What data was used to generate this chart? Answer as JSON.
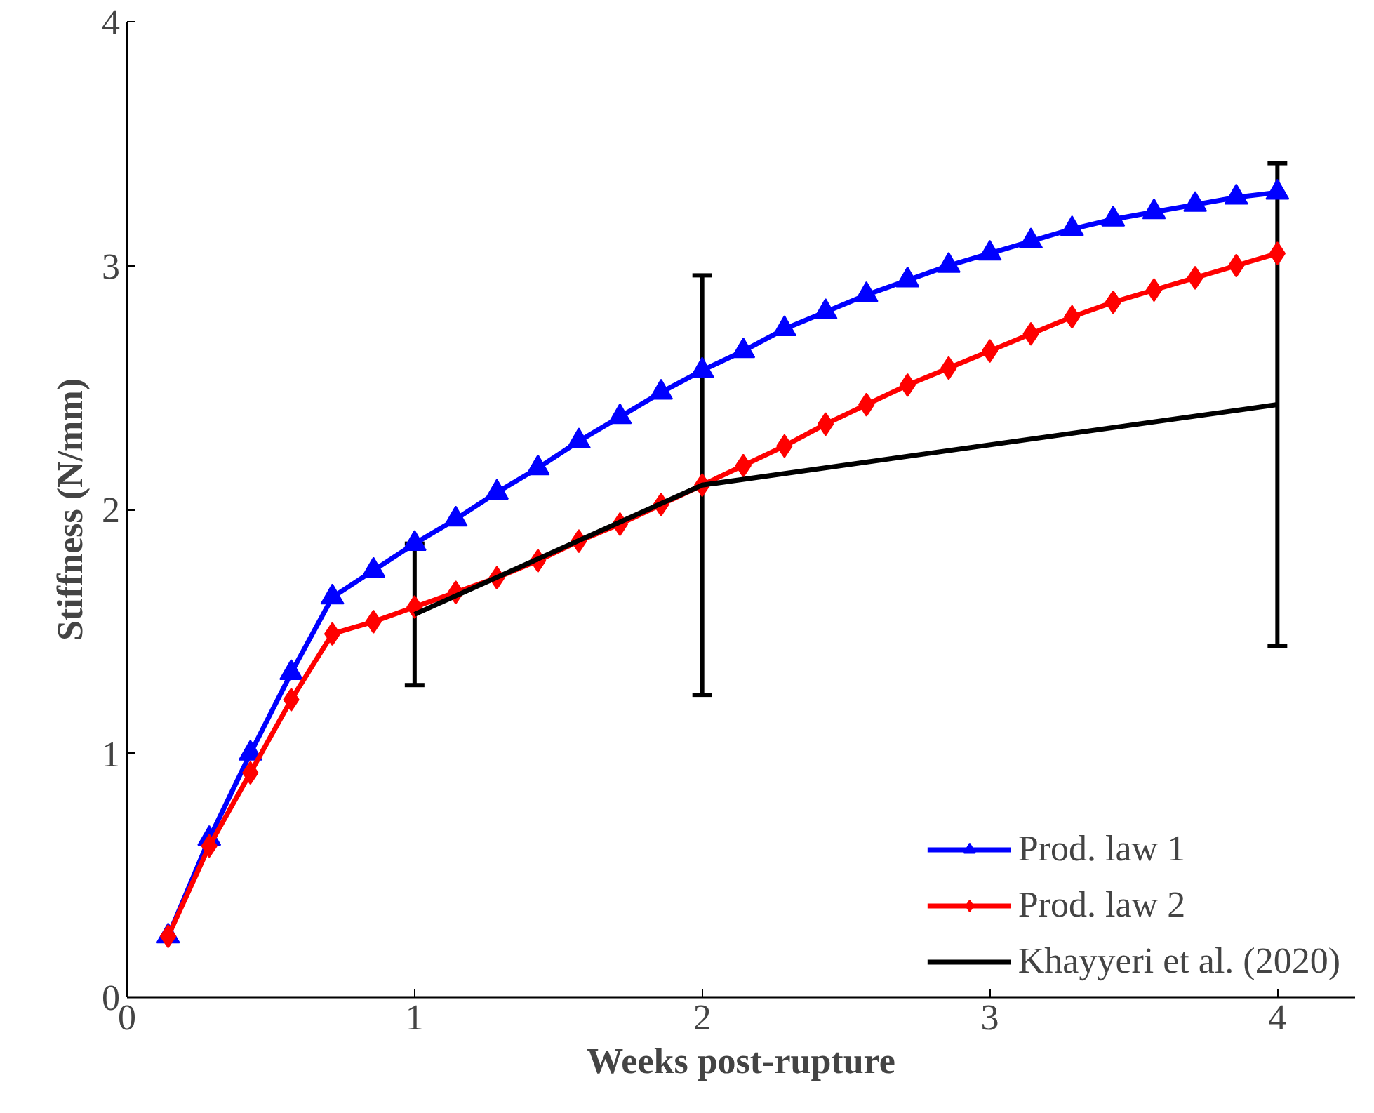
{
  "chart_data": {
    "type": "line",
    "xlabel": "Weeks post-rupture",
    "ylabel": "Stiffness (N/mm)",
    "xlim": [
      0,
      4.27
    ],
    "ylim": [
      0,
      4
    ],
    "xticks": [
      0,
      1,
      2,
      3,
      4
    ],
    "yticks": [
      0,
      1,
      2,
      3,
      4
    ],
    "grid": false,
    "legend": "bottom right",
    "line_style": "solid",
    "series": [
      {
        "name": "Prod. law 1",
        "color": "#0000ff",
        "marker": "triangle",
        "x": [
          0.143,
          0.286,
          0.429,
          0.571,
          0.714,
          0.857,
          1.0,
          1.143,
          1.286,
          1.429,
          1.571,
          1.714,
          1.857,
          2.0,
          2.143,
          2.286,
          2.429,
          2.571,
          2.714,
          2.857,
          3.0,
          3.143,
          3.286,
          3.429,
          3.571,
          3.714,
          3.857,
          4.0
        ],
        "values": [
          0.25,
          0.65,
          1.0,
          1.33,
          1.64,
          1.75,
          1.86,
          1.96,
          2.07,
          2.17,
          2.28,
          2.38,
          2.48,
          2.57,
          2.65,
          2.74,
          2.81,
          2.88,
          2.94,
          3.0,
          3.05,
          3.1,
          3.15,
          3.19,
          3.22,
          3.25,
          3.28,
          3.3
        ]
      },
      {
        "name": "Prod. law 2",
        "color": "#ff0000",
        "marker": "diamond",
        "x": [
          0.143,
          0.286,
          0.429,
          0.571,
          0.714,
          0.857,
          1.0,
          1.143,
          1.286,
          1.429,
          1.571,
          1.714,
          1.857,
          2.0,
          2.143,
          2.286,
          2.429,
          2.571,
          2.714,
          2.857,
          3.0,
          3.143,
          3.286,
          3.429,
          3.571,
          3.714,
          3.857,
          4.0
        ],
        "values": [
          0.25,
          0.62,
          0.92,
          1.22,
          1.49,
          1.54,
          1.6,
          1.66,
          1.72,
          1.79,
          1.87,
          1.94,
          2.02,
          2.1,
          2.18,
          2.26,
          2.35,
          2.43,
          2.51,
          2.58,
          2.65,
          2.72,
          2.79,
          2.85,
          2.9,
          2.95,
          3.0,
          3.05
        ]
      },
      {
        "name": "Khayyeri et al. (2020)",
        "color": "#000000",
        "marker": "none",
        "x": [
          1,
          2,
          4
        ],
        "values": [
          1.57,
          2.1,
          2.43
        ],
        "errors": [
          0.29,
          0.86,
          0.99
        ]
      }
    ]
  }
}
